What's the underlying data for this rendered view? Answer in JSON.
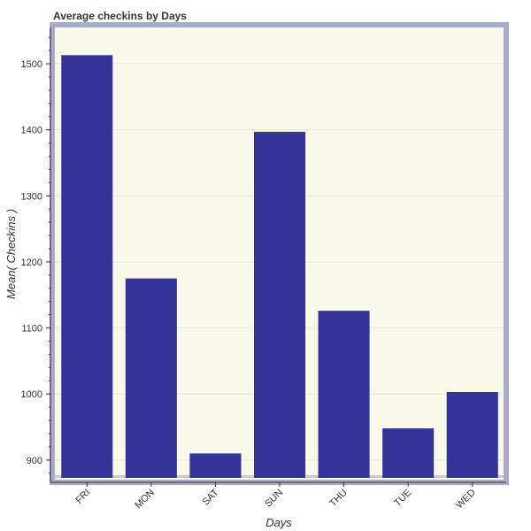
{
  "chart_data": {
    "type": "bar",
    "title": "Average checkins by Days",
    "xlabel": "Days",
    "ylabel": "Mean( Checkins )",
    "categories": [
      "FRI",
      "MON",
      "SAT",
      "SUN",
      "THU",
      "TUE",
      "WED"
    ],
    "values": [
      1513,
      1175,
      910,
      1397,
      1126,
      948,
      1003
    ],
    "ylim": [
      873,
      1555
    ],
    "yticks": [
      900,
      1000,
      1100,
      1200,
      1300,
      1400,
      1500
    ],
    "grid": true,
    "colors": {
      "bar": "#333399",
      "plot_background": "#f9f9ea",
      "frame": "#aaaacc",
      "grid": "#e6e6d8",
      "text": "#333333"
    }
  }
}
